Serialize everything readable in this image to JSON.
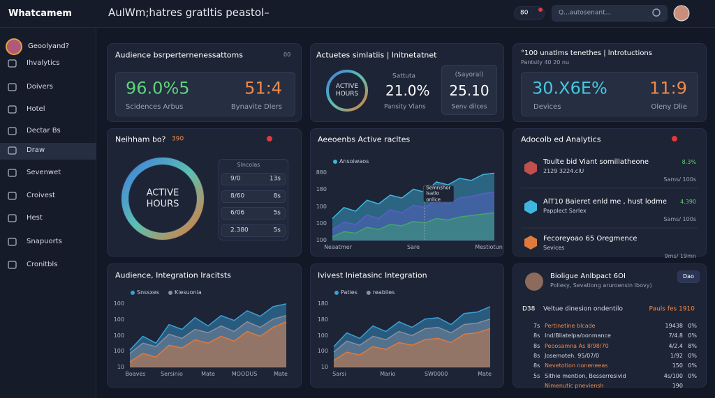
{
  "header": {
    "brand": "Whatcamem",
    "title": "AulWm;hatres gratltis peastol–",
    "badge": "80",
    "search": "Q...autosenant..."
  },
  "sidebar": {
    "profile": "Geoolyand?",
    "items": [
      "Ihvalytics",
      "Doivers",
      "Hotel",
      "Dectar Bs",
      "Draw",
      "Sevenwet",
      "Croivest",
      "Hest",
      "Snapuorts",
      "Cronitbls"
    ]
  },
  "cards": {
    "audience": {
      "title": "Audience bsrperternenessattoms",
      "tag": "00",
      "value1": "96.0%5",
      "label1": "Scidences Arbus",
      "value2": "51:4",
      "label2": "Bynavite Dlers"
    },
    "activity": {
      "title": "Actuetes simlatiis | lnitnetatnet",
      "ring": "ACTIVE HOURS",
      "caption": "Sattuta",
      "value": "21.0%",
      "label": "Pansity Vlans",
      "box_caption": "(Sayoral)",
      "box_value": "25.10",
      "box_label": "Senv dilces"
    },
    "devices": {
      "title": "°100 unatlms tenethes | lntrotuctions",
      "subtitle": "Pantsily 40 20 nu",
      "value1": "30.X6E%",
      "label1": "Devices",
      "value2": "11:9",
      "label2": "Oleny Dlie"
    },
    "hours": {
      "title": "Neihham bo?",
      "badge": "390",
      "ring": "ACTIVE HOURS",
      "list_title": "Slncolas",
      "rows": [
        [
          "9/0",
          "13s"
        ],
        [
          "8/60",
          "8s"
        ],
        [
          "6/06",
          "5s"
        ],
        [
          "2.380",
          "5s"
        ]
      ]
    },
    "analytics": {
      "title": "Adocolb ed Analytics",
      "items": [
        {
          "name": "Toulte bid Viant somillatheone",
          "detail": "2129 3224.clU",
          "change": "8.3%",
          "rate": "Sams/ 100s"
        },
        {
          "name": "AlT10 Baieret enld me , hust lodme",
          "detail": "Papplect Sarlex",
          "change": "4.390",
          "rate": "Sams/ 100s"
        },
        {
          "name": "Fecoreyoao 65 Oregmence",
          "detail": "Sevices",
          "change": "",
          "rate": "9ms/ 19mn"
        }
      ]
    },
    "profile": {
      "name": "Bioligue Anlbpact 6OI",
      "detail": "Poliesy, Sevationg aruroensin Ibovy)",
      "button": "Dao",
      "header": [
        "D38",
        "Veltue dinesion ondentilo",
        "Pauls fes 1910"
      ],
      "rows": [
        [
          "7s",
          "Pertinetine blcade",
          "19438",
          "0%"
        ],
        [
          "8s",
          "Ind/Bliatelpa/oonmance",
          "7/4.8",
          "0%"
        ],
        [
          "8s",
          "Peoosamna As 8/98/70",
          "4/2.4",
          "8%"
        ],
        [
          "8s",
          "Josemoteh. 95/07/0",
          "1/92",
          "0%"
        ],
        [
          "8s",
          "Nevetotion noneneeas",
          "150",
          "0%"
        ],
        [
          "5s",
          "Sithie mention, Besserresivid",
          "4s/100",
          "0%"
        ],
        [
          "",
          "Nimenutic pneviensh",
          "190",
          ""
        ]
      ]
    }
  },
  "charts": [
    {
      "type": "area",
      "title": "Aeeoenbs Active racltes",
      "tooltip": "Semnshor lsatlo onlice",
      "ylim": [
        0,
        100
      ],
      "y_labels": [
        "880",
        "180",
        "100",
        "100",
        "100"
      ],
      "x_labels": [
        "Neaatmer",
        "Sare",
        "Mestiotun"
      ],
      "series": [
        {
          "name": "Ansoiwaos",
          "color": "#3fb6e0",
          "values": [
            30,
            45,
            40,
            55,
            50,
            62,
            58,
            70,
            66,
            80,
            76,
            85,
            82,
            90,
            92
          ]
        },
        {
          "color": "#5b5fc7",
          "values": [
            15,
            25,
            22,
            35,
            30,
            42,
            38,
            48,
            45,
            55,
            50,
            58,
            60,
            64,
            66
          ]
        },
        {
          "color": "#3fa86a",
          "values": [
            5,
            12,
            10,
            18,
            15,
            22,
            20,
            26,
            24,
            30,
            28,
            32,
            34,
            36,
            38
          ]
        }
      ]
    },
    {
      "type": "area",
      "title": "Audience, Integration Iracitsts",
      "ylim": [
        0,
        100
      ],
      "y_labels": [
        "100",
        "100",
        "100",
        "100",
        "10"
      ],
      "x_labels": [
        "Boaves",
        "Sersinio",
        "Mate",
        "MOODUS",
        "Mate"
      ],
      "series": [
        {
          "name": "Snssxes",
          "color": "#3aa0d8",
          "values": [
            25,
            45,
            35,
            62,
            55,
            72,
            60,
            75,
            68,
            82,
            74,
            88,
            92
          ]
        },
        {
          "name": "Kiesuonia",
          "color": "#8a8fa0",
          "values": [
            20,
            35,
            30,
            48,
            42,
            55,
            50,
            60,
            52,
            66,
            58,
            70,
            75
          ]
        },
        {
          "color": "#e07a3c",
          "values": [
            8,
            20,
            15,
            32,
            28,
            40,
            35,
            45,
            38,
            52,
            45,
            58,
            66
          ]
        }
      ]
    },
    {
      "type": "area",
      "title": "Ivivest Inietasinc Integration",
      "ylim": [
        0,
        100
      ],
      "y_labels": [
        "180",
        "180",
        "100",
        "100",
        "10"
      ],
      "x_labels": [
        "Sarsi",
        "Mario",
        "SW0000",
        "Mate"
      ],
      "series": [
        {
          "name": "Paties",
          "color": "#3aa0d8",
          "values": [
            30,
            50,
            42,
            60,
            52,
            66,
            58,
            70,
            72,
            62,
            78,
            80,
            88
          ]
        },
        {
          "name": "reabiles",
          "color": "#8a8fa0",
          "values": [
            22,
            38,
            32,
            45,
            40,
            52,
            46,
            56,
            58,
            50,
            62,
            64,
            70
          ]
        },
        {
          "color": "#e07a3c",
          "values": [
            10,
            22,
            18,
            30,
            26,
            36,
            32,
            40,
            42,
            36,
            48,
            50,
            56
          ]
        }
      ]
    }
  ]
}
